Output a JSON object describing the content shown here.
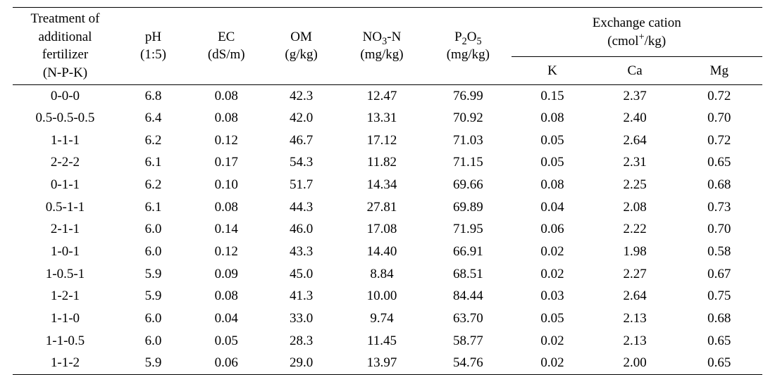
{
  "table": {
    "type": "table",
    "font_family": "Times New Roman",
    "font_size_pt": 14,
    "text_color": "#000000",
    "background_color": "#ffffff",
    "rule_color": "#000000",
    "col_widths_pct": [
      14.0,
      9.5,
      10.0,
      10.0,
      11.5,
      11.5,
      11.0,
      11.0,
      11.5
    ],
    "header": {
      "treatment_lines": [
        "Treatment of",
        "additional",
        "fertilizer",
        "(N-P-K)"
      ],
      "ph_lines": [
        "pH",
        "(1:5)"
      ],
      "ec_lines": [
        "EC",
        "(dS/m)"
      ],
      "om_lines": [
        "OM",
        "(g/kg)"
      ],
      "no3n_label": "NO",
      "no3n_sub": "3",
      "no3n_tail": "-N",
      "no3n_unit": "(mg/kg)",
      "p2o5_pre": "P",
      "p2o5_sub1": "2",
      "p2o5_mid": "O",
      "p2o5_sub2": "5",
      "p2o5_unit": "(mg/kg)",
      "exchange_line1": "Exchange cation",
      "exchange_line2_pre": "(cmol",
      "exchange_line2_sup": "+",
      "exchange_line2_post": "/kg)",
      "k": "K",
      "ca": "Ca",
      "mg": "Mg"
    },
    "columns": [
      "treat",
      "ph",
      "ec",
      "om",
      "no3n",
      "p2o5",
      "k",
      "ca",
      "mg"
    ],
    "rows": [
      {
        "treat": "0-0-0",
        "ph": "6.8",
        "ec": "0.08",
        "om": "42.3",
        "no3n": "12.47",
        "p2o5": "76.99",
        "k": "0.15",
        "ca": "2.37",
        "mg": "0.72"
      },
      {
        "treat": "0.5-0.5-0.5",
        "ph": "6.4",
        "ec": "0.08",
        "om": "42.0",
        "no3n": "13.31",
        "p2o5": "70.92",
        "k": "0.08",
        "ca": "2.40",
        "mg": "0.70"
      },
      {
        "treat": "1-1-1",
        "ph": "6.2",
        "ec": "0.12",
        "om": "46.7",
        "no3n": "17.12",
        "p2o5": "71.03",
        "k": "0.05",
        "ca": "2.64",
        "mg": "0.72"
      },
      {
        "treat": "2-2-2",
        "ph": "6.1",
        "ec": "0.17",
        "om": "54.3",
        "no3n": "11.82",
        "p2o5": "71.15",
        "k": "0.05",
        "ca": "2.31",
        "mg": "0.65"
      },
      {
        "treat": "0-1-1",
        "ph": "6.2",
        "ec": "0.10",
        "om": "51.7",
        "no3n": "14.34",
        "p2o5": "69.66",
        "k": "0.08",
        "ca": "2.25",
        "mg": "0.68"
      },
      {
        "treat": "0.5-1-1",
        "ph": "6.1",
        "ec": "0.08",
        "om": "44.3",
        "no3n": "27.81",
        "p2o5": "69.89",
        "k": "0.04",
        "ca": "2.08",
        "mg": "0.73"
      },
      {
        "treat": "2-1-1",
        "ph": "6.0",
        "ec": "0.14",
        "om": "46.0",
        "no3n": "17.08",
        "p2o5": "71.95",
        "k": "0.06",
        "ca": "2.22",
        "mg": "0.70"
      },
      {
        "treat": "1-0-1",
        "ph": "6.0",
        "ec": "0.12",
        "om": "43.3",
        "no3n": "14.40",
        "p2o5": "66.91",
        "k": "0.02",
        "ca": "1.98",
        "mg": "0.58"
      },
      {
        "treat": "1-0.5-1",
        "ph": "5.9",
        "ec": "0.09",
        "om": "45.0",
        "no3n": "8.84",
        "p2o5": "68.51",
        "k": "0.02",
        "ca": "2.27",
        "mg": "0.67"
      },
      {
        "treat": "1-2-1",
        "ph": "5.9",
        "ec": "0.08",
        "om": "41.3",
        "no3n": "10.00",
        "p2o5": "84.44",
        "k": "0.03",
        "ca": "2.64",
        "mg": "0.75"
      },
      {
        "treat": "1-1-0",
        "ph": "6.0",
        "ec": "0.04",
        "om": "33.0",
        "no3n": "9.74",
        "p2o5": "63.70",
        "k": "0.05",
        "ca": "2.13",
        "mg": "0.68"
      },
      {
        "treat": "1-1-0.5",
        "ph": "6.0",
        "ec": "0.05",
        "om": "28.3",
        "no3n": "11.45",
        "p2o5": "58.77",
        "k": "0.02",
        "ca": "2.13",
        "mg": "0.65"
      },
      {
        "treat": "1-1-2",
        "ph": "5.9",
        "ec": "0.06",
        "om": "29.0",
        "no3n": "13.97",
        "p2o5": "54.76",
        "k": "0.02",
        "ca": "2.00",
        "mg": "0.65"
      }
    ]
  }
}
